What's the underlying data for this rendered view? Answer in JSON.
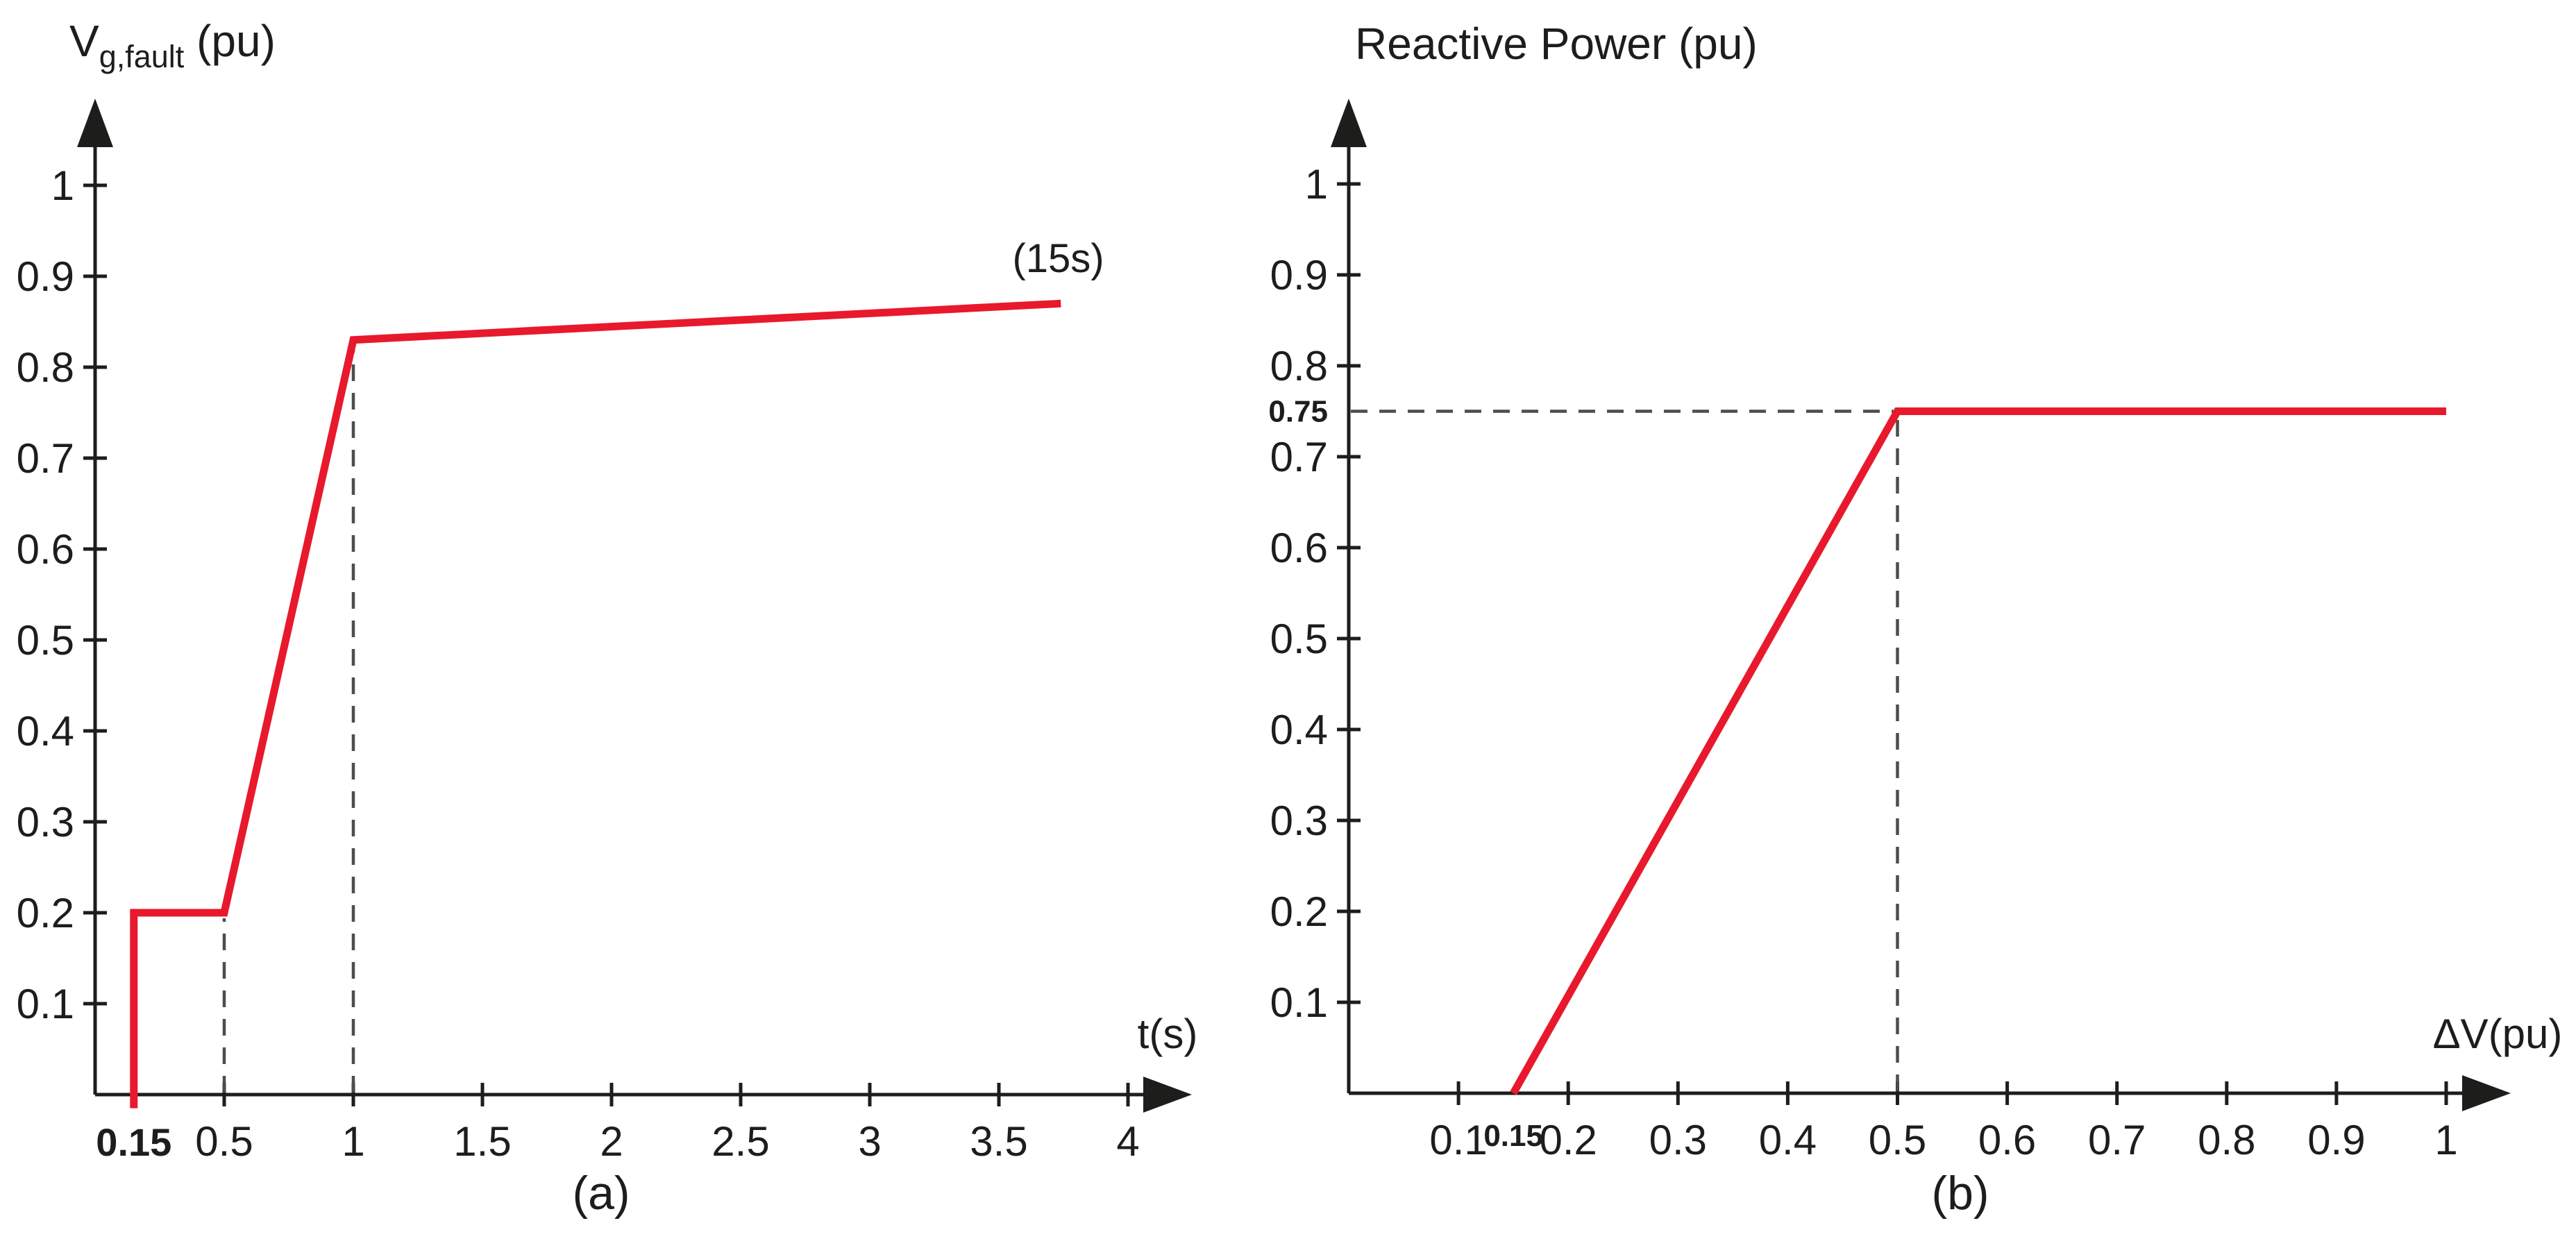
{
  "figure": {
    "background": "#ffffff",
    "accent_red": "#E8192C",
    "axis_color": "#1d1d1b",
    "dash_color": "#4d4d4d"
  },
  "chart_data": [
    {
      "id": "a",
      "type": "line",
      "title": {
        "main": "V",
        "sub": "g,fault",
        "rest": " (pu)"
      },
      "xlabel": "t(s)",
      "caption": "(a)",
      "xlim": [
        0,
        4.25
      ],
      "ylim": [
        0,
        1.1
      ],
      "grid": false,
      "x_ticks": [
        0.5,
        1,
        1.5,
        2,
        2.5,
        3,
        3.5,
        4
      ],
      "x_ticks_bold": [
        0.15
      ],
      "y_ticks": [
        0.1,
        0.2,
        0.3,
        0.4,
        0.5,
        0.6,
        0.7,
        0.8,
        0.9,
        1
      ],
      "y_ticks_bold": [],
      "series": [
        {
          "name": "fault-voltage-recovery-line",
          "color": "#E8192C",
          "points": [
            [
              0.15,
              -0.015
            ],
            [
              0.15,
              0.2
            ],
            [
              0.5,
              0.2
            ],
            [
              1,
              0.83
            ],
            [
              3.74,
              0.87
            ]
          ]
        }
      ],
      "annotations": [
        {
          "text": "(15s)",
          "x": 3.73,
          "y": 0.92
        }
      ],
      "guides": [
        {
          "orient": "v",
          "x": 0.5,
          "to_y": 0.2
        },
        {
          "orient": "v",
          "x": 1,
          "to_y": 0.83
        }
      ]
    },
    {
      "id": "b",
      "type": "line",
      "title": {
        "main": "Reactive Power (pu)",
        "sub": "",
        "rest": ""
      },
      "xlabel": "ΔV(pu)",
      "caption": "(b)",
      "xlim": [
        0,
        1.05
      ],
      "ylim": [
        0,
        1.1
      ],
      "grid": false,
      "x_ticks": [
        0.1,
        0.2,
        0.3,
        0.4,
        0.5,
        0.6,
        0.7,
        0.8,
        0.9,
        1
      ],
      "x_ticks_bold": [
        0.15
      ],
      "y_ticks": [
        0.1,
        0.2,
        0.3,
        0.4,
        0.5,
        0.6,
        0.7,
        0.8,
        0.9,
        1
      ],
      "y_ticks_bold": [
        0.75
      ],
      "series": [
        {
          "name": "reactive-power-droop-line",
          "color": "#E8192C",
          "points": [
            [
              0.15,
              0
            ],
            [
              0.5,
              0.75
            ],
            [
              1,
              0.75
            ]
          ]
        }
      ],
      "annotations": [],
      "guides": [
        {
          "orient": "h",
          "y": 0.75,
          "to_x": 0.5
        },
        {
          "orient": "v",
          "x": 0.5,
          "to_y": 0.75
        }
      ]
    }
  ]
}
